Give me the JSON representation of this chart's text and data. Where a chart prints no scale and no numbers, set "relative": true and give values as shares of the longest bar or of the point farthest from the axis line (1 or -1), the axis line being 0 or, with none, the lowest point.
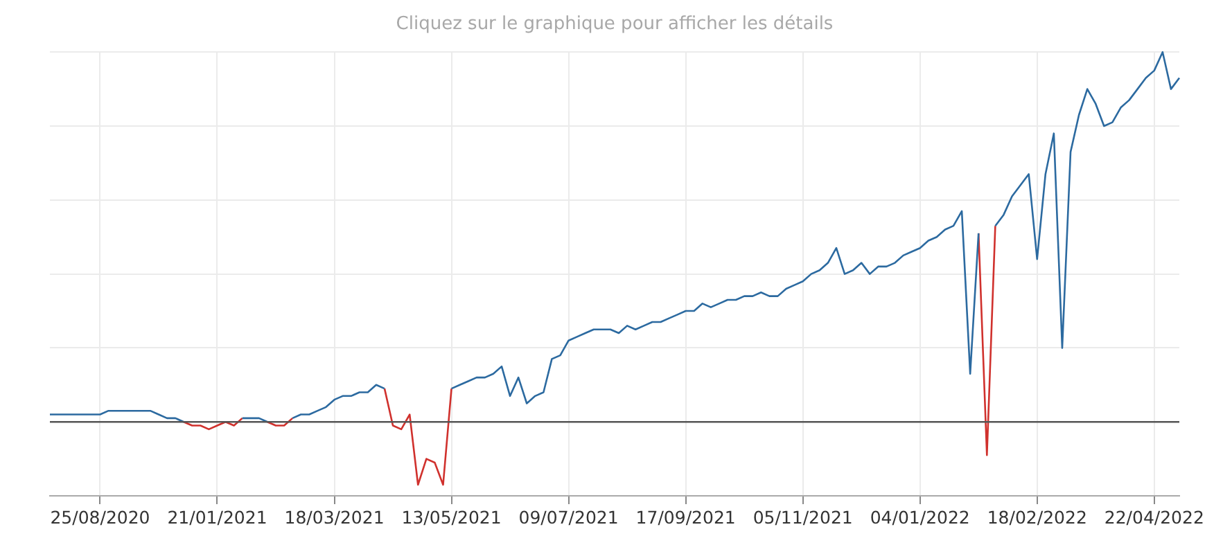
{
  "chart_data": {
    "type": "line",
    "title": "Cliquez sur le graphique pour afficher les détails",
    "relative": true,
    "grid": true,
    "legend": false,
    "marker": "none",
    "line_style": "solid",
    "categories": [
      null,
      null,
      null,
      null,
      null,
      null,
      "25/08/2020",
      null,
      null,
      null,
      null,
      null,
      null,
      null,
      null,
      null,
      null,
      null,
      null,
      null,
      "21/01/2021",
      null,
      null,
      null,
      null,
      null,
      null,
      null,
      null,
      null,
      null,
      null,
      null,
      null,
      "18/03/2021",
      null,
      null,
      null,
      null,
      null,
      null,
      null,
      null,
      null,
      null,
      null,
      null,
      null,
      "13/05/2021",
      null,
      null,
      null,
      null,
      null,
      null,
      null,
      null,
      null,
      null,
      null,
      null,
      null,
      "09/07/2021",
      null,
      null,
      null,
      null,
      null,
      null,
      null,
      null,
      null,
      null,
      null,
      null,
      null,
      "17/09/2021",
      null,
      null,
      null,
      null,
      null,
      null,
      null,
      null,
      null,
      null,
      null,
      null,
      null,
      "05/11/2021",
      null,
      null,
      null,
      null,
      null,
      null,
      null,
      null,
      null,
      null,
      null,
      null,
      null,
      "04/01/2022",
      null,
      null,
      null,
      null,
      null,
      null,
      null,
      null,
      null,
      null,
      null,
      null,
      null,
      "18/02/2022",
      null,
      null,
      null,
      null,
      null,
      null,
      null,
      null,
      null,
      null,
      null,
      null,
      null,
      "22/04/2022",
      null,
      null,
      null
    ],
    "series": [
      {
        "color": "#2c6aa0",
        "values": [
          0.02,
          0.02,
          0.02,
          0.02,
          0.02,
          0.02,
          0.02,
          0.03,
          0.03,
          0.03,
          0.03,
          0.03,
          0.03,
          0.02,
          0.01,
          0.01,
          0,
          null,
          null,
          null,
          null,
          null,
          null,
          0.01,
          0.01,
          0.01,
          0,
          null,
          null,
          0.01,
          0.02,
          0.02,
          0.03,
          0.04,
          0.06,
          0.07,
          0.07,
          0.08,
          0.08,
          0.1,
          0.09,
          null,
          null,
          null,
          null,
          null,
          null,
          null,
          0.09,
          0.1,
          0.11,
          0.12,
          0.12,
          0.13,
          0.15,
          0.07,
          0.12,
          0.05,
          0.07,
          0.08,
          0.17,
          0.18,
          0.22,
          0.23,
          0.24,
          0.25,
          0.25,
          0.25,
          0.24,
          0.26,
          0.25,
          0.26,
          0.27,
          0.27,
          0.28,
          0.29,
          0.3,
          0.3,
          0.32,
          0.31,
          0.32,
          0.33,
          0.33,
          0.34,
          0.34,
          0.35,
          0.34,
          0.34,
          0.36,
          0.37,
          0.38,
          0.4,
          0.41,
          0.43,
          0.47,
          0.4,
          0.41,
          0.43,
          0.4,
          0.42,
          0.42,
          0.43,
          0.45,
          0.46,
          0.47,
          0.49,
          0.5,
          0.52,
          0.53,
          0.57,
          0.13,
          0.51,
          null,
          0.53,
          0.56,
          0.61,
          0.64,
          0.67,
          0.44,
          0.67,
          0.78,
          0.2,
          0.73,
          0.83,
          0.9,
          0.86,
          0.8,
          0.81,
          0.85,
          0.87,
          0.9,
          0.93,
          0.95,
          1,
          0.9,
          0.93
        ]
      },
      {
        "color": "#d0312d",
        "values": [
          null,
          null,
          null,
          null,
          null,
          null,
          null,
          null,
          null,
          null,
          null,
          null,
          null,
          null,
          null,
          null,
          0,
          -0.01,
          -0.01,
          -0.02,
          -0.01,
          0,
          -0.01,
          0.01,
          null,
          null,
          0,
          -0.01,
          -0.01,
          0.01,
          null,
          null,
          null,
          null,
          null,
          null,
          null,
          null,
          null,
          null,
          0.09,
          -0.01,
          -0.02,
          0.02,
          -0.17,
          -0.1,
          -0.11,
          -0.17,
          0.09,
          null,
          null,
          null,
          null,
          null,
          null,
          null,
          null,
          null,
          null,
          null,
          null,
          null,
          null,
          null,
          null,
          null,
          null,
          null,
          null,
          null,
          null,
          null,
          null,
          null,
          null,
          null,
          null,
          null,
          null,
          null,
          null,
          null,
          null,
          null,
          null,
          null,
          null,
          null,
          null,
          null,
          null,
          null,
          null,
          null,
          null,
          null,
          null,
          null,
          null,
          null,
          null,
          null,
          null,
          null,
          null,
          null,
          null,
          null,
          null,
          null,
          null,
          0.51,
          -0.09,
          0.53,
          null,
          null,
          null,
          null,
          null,
          null,
          null,
          null,
          null,
          null,
          null,
          null,
          null,
          null,
          null,
          null,
          null,
          null,
          null,
          null,
          null,
          null
        ]
      }
    ],
    "ref_lines": [
      {
        "axis": "y",
        "value": 0,
        "color": "#555555"
      }
    ]
  }
}
